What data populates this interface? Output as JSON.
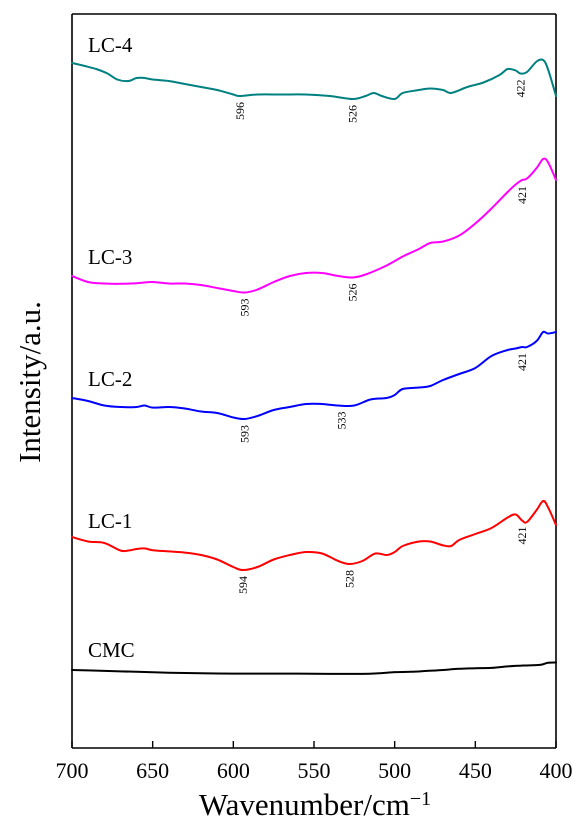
{
  "chart_data": {
    "type": "line",
    "xlabel": "Wavenumber/cm",
    "xlabel_superscript": "−1",
    "ylabel": "Intensity/a.u.",
    "xlim": [
      700,
      400
    ],
    "x_reversed": true,
    "y_ticks_shown": false,
    "grid": false,
    "x_ticks": [
      700,
      650,
      600,
      550,
      500,
      450,
      400
    ],
    "x_tick_labels": [
      "700",
      "650",
      "600",
      "550",
      "500",
      "450",
      "400"
    ],
    "series": [
      {
        "name": "CMC",
        "color": "#000000",
        "points": [
          [
            700,
            0.0
          ],
          [
            680,
            -0.3
          ],
          [
            660,
            -0.6
          ],
          [
            640,
            -0.9
          ],
          [
            620,
            -1.1
          ],
          [
            600,
            -1.2
          ],
          [
            580,
            -1.2
          ],
          [
            560,
            -1.2
          ],
          [
            540,
            -1.3
          ],
          [
            520,
            -1.3
          ],
          [
            510,
            -1.1
          ],
          [
            500,
            -0.7
          ],
          [
            490,
            -0.6
          ],
          [
            480,
            -0.3
          ],
          [
            470,
            0.0
          ],
          [
            460,
            0.4
          ],
          [
            450,
            0.6
          ],
          [
            440,
            0.7
          ],
          [
            430,
            1.2
          ],
          [
            420,
            1.5
          ],
          [
            410,
            1.7
          ],
          [
            405,
            2.4
          ],
          [
            400,
            2.5
          ]
        ]
      },
      {
        "name": "LC-1",
        "color": "#ff0000",
        "points": [
          [
            700,
            0.0
          ],
          [
            690,
            -1.5
          ],
          [
            680,
            -2.0
          ],
          [
            670,
            -4.5
          ],
          [
            665,
            -4.5
          ],
          [
            660,
            -4.0
          ],
          [
            655,
            -3.8
          ],
          [
            650,
            -4.4
          ],
          [
            640,
            -4.8
          ],
          [
            630,
            -5.2
          ],
          [
            620,
            -6.0
          ],
          [
            610,
            -7.5
          ],
          [
            600,
            -10.0
          ],
          [
            594,
            -11.0
          ],
          [
            585,
            -10.0
          ],
          [
            575,
            -7.5
          ],
          [
            565,
            -6.0
          ],
          [
            555,
            -5.0
          ],
          [
            545,
            -5.5
          ],
          [
            535,
            -8.0
          ],
          [
            528,
            -9.0
          ],
          [
            520,
            -8.0
          ],
          [
            512,
            -5.5
          ],
          [
            505,
            -6.0
          ],
          [
            500,
            -5.0
          ],
          [
            495,
            -3.0
          ],
          [
            485,
            -1.5
          ],
          [
            478,
            -1.5
          ],
          [
            470,
            -2.8
          ],
          [
            465,
            -3.0
          ],
          [
            460,
            -1.0
          ],
          [
            450,
            1.0
          ],
          [
            440,
            3.0
          ],
          [
            430,
            6.5
          ],
          [
            425,
            7.5
          ],
          [
            421,
            5.5
          ],
          [
            418,
            5.0
          ],
          [
            412,
            9.0
          ],
          [
            408,
            12.0
          ],
          [
            405,
            10.0
          ],
          [
            400,
            4.0
          ]
        ]
      },
      {
        "name": "LC-2",
        "color": "#0000ff",
        "points": [
          [
            700,
            0.0
          ],
          [
            690,
            -1.0
          ],
          [
            680,
            -2.5
          ],
          [
            670,
            -3.0
          ],
          [
            660,
            -3.0
          ],
          [
            655,
            -2.5
          ],
          [
            650,
            -3.2
          ],
          [
            640,
            -3.0
          ],
          [
            630,
            -3.5
          ],
          [
            620,
            -4.5
          ],
          [
            610,
            -5.0
          ],
          [
            600,
            -6.5
          ],
          [
            593,
            -7.0
          ],
          [
            585,
            -6.0
          ],
          [
            575,
            -4.0
          ],
          [
            565,
            -3.0
          ],
          [
            555,
            -2.0
          ],
          [
            545,
            -2.0
          ],
          [
            535,
            -2.5
          ],
          [
            525,
            -2.5
          ],
          [
            515,
            -0.5
          ],
          [
            505,
            0.0
          ],
          [
            500,
            1.0
          ],
          [
            495,
            3.0
          ],
          [
            485,
            3.5
          ],
          [
            478,
            4.0
          ],
          [
            470,
            6.0
          ],
          [
            460,
            8.0
          ],
          [
            450,
            10.0
          ],
          [
            440,
            14.0
          ],
          [
            430,
            16.0
          ],
          [
            425,
            16.5
          ],
          [
            421,
            17.0
          ],
          [
            418,
            17.0
          ],
          [
            412,
            19.0
          ],
          [
            408,
            22.0
          ],
          [
            405,
            21.5
          ],
          [
            400,
            22.0
          ]
        ]
      },
      {
        "name": "LC-3",
        "color": "#ff00ff",
        "points": [
          [
            700,
            0.0
          ],
          [
            690,
            -2.0
          ],
          [
            680,
            -2.5
          ],
          [
            670,
            -2.6
          ],
          [
            660,
            -2.4
          ],
          [
            650,
            -2.0
          ],
          [
            640,
            -2.5
          ],
          [
            630,
            -2.5
          ],
          [
            620,
            -3.0
          ],
          [
            610,
            -4.0
          ],
          [
            600,
            -5.0
          ],
          [
            593,
            -5.5
          ],
          [
            585,
            -4.5
          ],
          [
            575,
            -2.0
          ],
          [
            565,
            0.0
          ],
          [
            555,
            1.0
          ],
          [
            545,
            1.0
          ],
          [
            535,
            0.0
          ],
          [
            526,
            -0.5
          ],
          [
            518,
            0.5
          ],
          [
            505,
            3.5
          ],
          [
            495,
            6.5
          ],
          [
            485,
            9.0
          ],
          [
            478,
            11.0
          ],
          [
            470,
            11.5
          ],
          [
            460,
            13.5
          ],
          [
            450,
            17.5
          ],
          [
            440,
            22.5
          ],
          [
            430,
            28.0
          ],
          [
            425,
            30.5
          ],
          [
            421,
            32.0
          ],
          [
            418,
            32.5
          ],
          [
            412,
            36.0
          ],
          [
            408,
            39.0
          ],
          [
            405,
            38.0
          ],
          [
            400,
            32.0
          ]
        ]
      },
      {
        "name": "LC-4",
        "color": "#008080",
        "points": [
          [
            700,
            0.0
          ],
          [
            692,
            -1.0
          ],
          [
            685,
            -2.0
          ],
          [
            678,
            -3.5
          ],
          [
            672,
            -5.5
          ],
          [
            665,
            -6.0
          ],
          [
            660,
            -5.0
          ],
          [
            655,
            -5.0
          ],
          [
            650,
            -5.5
          ],
          [
            640,
            -6.0
          ],
          [
            630,
            -7.0
          ],
          [
            620,
            -8.0
          ],
          [
            610,
            -9.0
          ],
          [
            600,
            -10.5
          ],
          [
            596,
            -11.0
          ],
          [
            585,
            -10.5
          ],
          [
            570,
            -10.5
          ],
          [
            555,
            -10.5
          ],
          [
            540,
            -11.0
          ],
          [
            526,
            -12.0
          ],
          [
            518,
            -11.0
          ],
          [
            513,
            -10.0
          ],
          [
            508,
            -11.0
          ],
          [
            500,
            -12.0
          ],
          [
            495,
            -10.0
          ],
          [
            485,
            -9.0
          ],
          [
            478,
            -8.5
          ],
          [
            470,
            -9.0
          ],
          [
            465,
            -10.0
          ],
          [
            455,
            -8.0
          ],
          [
            445,
            -6.5
          ],
          [
            435,
            -4.0
          ],
          [
            430,
            -2.0
          ],
          [
            425,
            -2.5
          ],
          [
            422,
            -3.5
          ],
          [
            418,
            -3.0
          ],
          [
            412,
            0.5
          ],
          [
            408,
            1.0
          ],
          [
            405,
            -2.0
          ],
          [
            400,
            -11.0
          ]
        ]
      }
    ],
    "series_baselines_px": null,
    "label_text": [
      {
        "series": "CMC",
        "text": "CMC"
      },
      {
        "series": "LC-1",
        "text": "LC-1"
      },
      {
        "series": "LC-2",
        "text": "LC-2"
      },
      {
        "series": "LC-3",
        "text": "LC-3"
      },
      {
        "series": "LC-4",
        "text": "LC-4"
      }
    ],
    "annotations": [
      {
        "series": "LC-1",
        "x": 594,
        "text": "594"
      },
      {
        "series": "LC-1",
        "x": 528,
        "text": "528"
      },
      {
        "series": "LC-1",
        "x": 421,
        "text": "421"
      },
      {
        "series": "LC-2",
        "x": 593,
        "text": "593"
      },
      {
        "series": "LC-2",
        "x": 533,
        "text": "533"
      },
      {
        "series": "LC-2",
        "x": 421,
        "text": "421"
      },
      {
        "series": "LC-3",
        "x": 593,
        "text": "593"
      },
      {
        "series": "LC-3",
        "x": 526,
        "text": "526"
      },
      {
        "series": "LC-3",
        "x": 421,
        "text": "421"
      },
      {
        "series": "LC-4",
        "x": 596,
        "text": "596"
      },
      {
        "series": "LC-4",
        "x": 526,
        "text": "526"
      },
      {
        "series": "LC-4",
        "x": 422,
        "text": "422"
      }
    ]
  }
}
